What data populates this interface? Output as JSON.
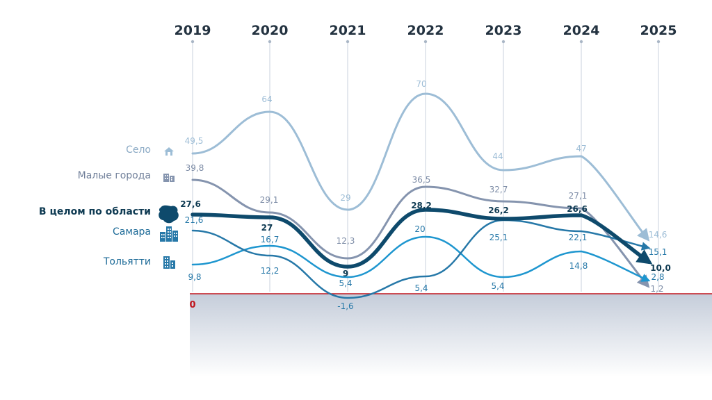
{
  "chart_data": {
    "type": "line",
    "x": [
      "2019",
      "2020",
      "2021",
      "2022",
      "2023",
      "2024",
      "2025"
    ],
    "zero_label": "0",
    "series": [
      {
        "key": "selo",
        "name": "Село",
        "color": "#9dbdd6",
        "values": [
          49.5,
          64,
          29,
          70,
          44,
          47,
          14.6
        ],
        "labels": [
          "49,5",
          "64",
          "29",
          "70",
          "44",
          "47",
          "14,6"
        ]
      },
      {
        "key": "malye",
        "name": "Малые города",
        "color": "#8594ae",
        "values": [
          39.8,
          29.1,
          12.3,
          36.5,
          32.7,
          27.1,
          1.2
        ],
        "labels": [
          "39,8",
          "29,1",
          "12,3",
          "36,5",
          "32,7",
          "27,1",
          "1,2"
        ]
      },
      {
        "key": "oblast",
        "name": "В целом по области",
        "color": "#0e4a6c",
        "values": [
          27.6,
          27,
          9,
          28.2,
          26.2,
          26.6,
          10.0
        ],
        "labels": [
          "27,6",
          "27",
          "9",
          "28,2",
          "26,2",
          "26,6",
          "10,0"
        ]
      },
      {
        "key": "samara",
        "name": "Самара",
        "color": "#2678a8",
        "values": [
          21.6,
          12.2,
          -1.6,
          5.4,
          25.1,
          22.1,
          15.1
        ],
        "labels": [
          "21,6",
          "12,2",
          "-1,6",
          "5,4",
          "25,1",
          "22,1",
          "15,1"
        ]
      },
      {
        "key": "tolyatti",
        "name": "Тольятти",
        "color": "#1e96cf",
        "values": [
          9.8,
          16.7,
          5.4,
          20,
          5.4,
          14.8,
          2.8
        ],
        "labels": [
          "9,8",
          "16,7",
          "5,4",
          "20",
          "5,4",
          "14,8",
          "2,8"
        ]
      }
    ]
  },
  "legend_icons": {
    "selo": "house-icon",
    "malye": "buildings-icon",
    "oblast": "region-map-icon",
    "samara": "city-icon",
    "tolyatti": "tower-icon"
  }
}
